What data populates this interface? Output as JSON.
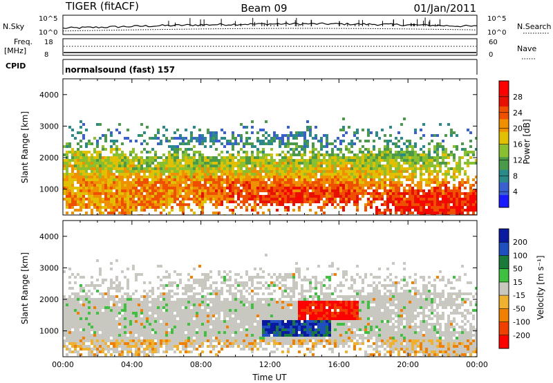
{
  "header": {
    "radar": "TIGER (fitACF)",
    "beam": "Beam 09",
    "date": "01/Jan/2011"
  },
  "strips": {
    "nsky_label": "N.Sky",
    "nsky_ticks": [
      "10^5",
      "10^0"
    ],
    "nsearch_label": "N.Search",
    "nsearch_ticks": [
      "10^5",
      "10^0"
    ],
    "freq_label": "Freq.",
    "freq_unit": "[MHz]",
    "freq_ticks": [
      "18",
      "8"
    ],
    "nave_label": "Nave",
    "nave_ticks": [
      "60",
      "0"
    ],
    "cpid_label": "CPID",
    "cpid_value": "normalsound (fast) 157"
  },
  "chart_data": [
    {
      "type": "heatmap",
      "name": "power",
      "ylabel": "Slant Range [km]",
      "xlabel": "",
      "xlim": [
        0,
        24
      ],
      "ylim": [
        180,
        4500
      ],
      "yticks": [
        "1000",
        "2000",
        "3000",
        "4000"
      ],
      "yvalues": [
        1000,
        2000,
        3000,
        4000
      ],
      "colorbar": {
        "label": "Power [dB]",
        "ticks": [
          "4",
          "8",
          "12",
          "16",
          "20",
          "24",
          "28"
        ],
        "values": [
          4,
          8,
          12,
          16,
          20,
          24,
          28
        ],
        "range": [
          0,
          32
        ],
        "colors": [
          "#1a1aff",
          "#3a5fd0",
          "#2a8a8a",
          "#4a9a4a",
          "#8ac030",
          "#e0c000",
          "#f09000",
          "#ee5000",
          "#e81000",
          "#ff0000"
        ]
      }
    },
    {
      "type": "heatmap",
      "name": "velocity",
      "ylabel": "Slant Range [km]",
      "xlabel": "Time UT",
      "xlim": [
        0,
        24
      ],
      "ylim": [
        180,
        4500
      ],
      "xticks": [
        "00:00",
        "04:00",
        "08:00",
        "12:00",
        "16:00",
        "20:00",
        "00:00"
      ],
      "xvalues": [
        0,
        4,
        8,
        12,
        16,
        20,
        24
      ],
      "yticks": [
        "1000",
        "2000",
        "3000",
        "4000"
      ],
      "yvalues": [
        1000,
        2000,
        3000,
        4000
      ],
      "colorbar": {
        "label": "Velocity [m s⁻¹]",
        "ticks": [
          "200",
          "100",
          "50",
          "15",
          "-15",
          "-50",
          "-100",
          "-200"
        ],
        "colors": [
          "#0a1aa0",
          "#2050c0",
          "#1a7a3a",
          "#40c040",
          "#c8c8c0",
          "#f0b030",
          "#f08000",
          "#f04000",
          "#ff0000"
        ]
      }
    }
  ]
}
